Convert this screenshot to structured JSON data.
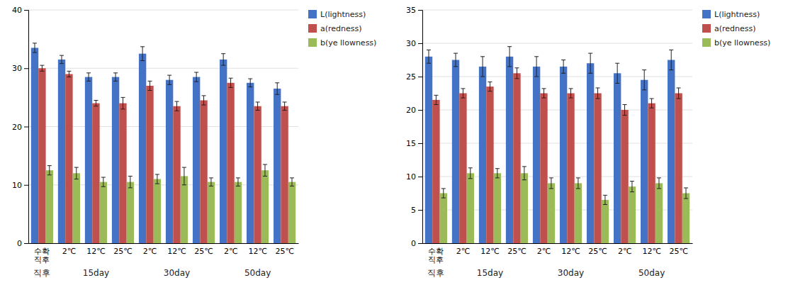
{
  "chart_data": [
    {
      "type": "bar",
      "categories": [
        "수확\n직후",
        "2℃",
        "12℃",
        "25℃",
        "2℃",
        "12℃",
        "25℃",
        "2℃",
        "12℃",
        "25℃"
      ],
      "series": [
        {
          "name": "L(lightness)",
          "color": "#4472C4",
          "values": [
            33.5,
            31.5,
            28.5,
            28.5,
            32.5,
            28.0,
            28.5,
            31.5,
            27.5,
            26.5
          ],
          "errors": [
            0.8,
            0.7,
            0.7,
            0.7,
            1.2,
            0.8,
            0.8,
            1.0,
            0.7,
            1.0
          ]
        },
        {
          "name": "a(redness)",
          "color": "#C0504D",
          "values": [
            30.0,
            29.0,
            24.0,
            24.0,
            27.0,
            23.5,
            24.5,
            27.5,
            23.5,
            23.5
          ],
          "errors": [
            0.5,
            0.5,
            0.5,
            1.0,
            0.8,
            0.8,
            0.8,
            0.8,
            0.7,
            0.7
          ]
        },
        {
          "name": "b(ye llowness)",
          "color": "#9BBB59",
          "values": [
            12.5,
            12.0,
            10.5,
            10.5,
            11.0,
            11.5,
            10.5,
            10.5,
            12.5,
            10.5
          ],
          "errors": [
            0.8,
            1.0,
            0.8,
            1.0,
            0.8,
            1.5,
            0.7,
            0.7,
            1.0,
            0.7
          ]
        }
      ],
      "annotations": [
        {
          "text": "직후",
          "x": 0
        },
        {
          "text": "15day",
          "x": 2
        },
        {
          "text": "30day",
          "x": 5
        },
        {
          "text": "50day",
          "x": 8
        }
      ],
      "ylim": [
        0,
        40
      ],
      "yticks": [
        0,
        10,
        20,
        30,
        40
      ],
      "grid": true,
      "legend": "upper right"
    },
    {
      "type": "bar",
      "categories": [
        "수확\n직후",
        "2℃",
        "12℃",
        "25℃",
        "2℃",
        "12℃",
        "25℃",
        "2℃",
        "12℃",
        "25℃"
      ],
      "series": [
        {
          "name": "L(lightness)",
          "color": "#4472C4",
          "values": [
            28.0,
            27.5,
            26.5,
            28.0,
            26.5,
            26.5,
            27.0,
            25.5,
            24.5,
            27.5
          ],
          "errors": [
            1.0,
            1.0,
            1.5,
            1.5,
            1.5,
            1.0,
            1.5,
            1.5,
            1.5,
            1.5
          ]
        },
        {
          "name": "a(redness)",
          "color": "#C0504D",
          "values": [
            21.5,
            22.5,
            23.5,
            25.5,
            22.5,
            22.5,
            22.5,
            20.0,
            21.0,
            22.5
          ],
          "errors": [
            0.7,
            0.7,
            0.7,
            0.8,
            0.7,
            0.7,
            0.8,
            0.8,
            0.7,
            0.8
          ]
        },
        {
          "name": "b(ye llowness)",
          "color": "#9BBB59",
          "values": [
            7.5,
            10.5,
            10.5,
            10.5,
            9.0,
            9.0,
            6.5,
            8.5,
            9.0,
            7.5
          ],
          "errors": [
            0.7,
            0.8,
            0.7,
            1.0,
            0.8,
            0.8,
            0.7,
            0.8,
            0.8,
            0.8
          ]
        }
      ],
      "annotations": [
        {
          "text": "직후",
          "x": 0
        },
        {
          "text": "15day",
          "x": 2
        },
        {
          "text": "30day",
          "x": 5
        },
        {
          "text": "50day",
          "x": 8
        }
      ],
      "ylim": [
        0,
        35
      ],
      "yticks": [
        0,
        5,
        10,
        15,
        20,
        25,
        30,
        35
      ],
      "grid": true,
      "legend": "upper right"
    }
  ]
}
